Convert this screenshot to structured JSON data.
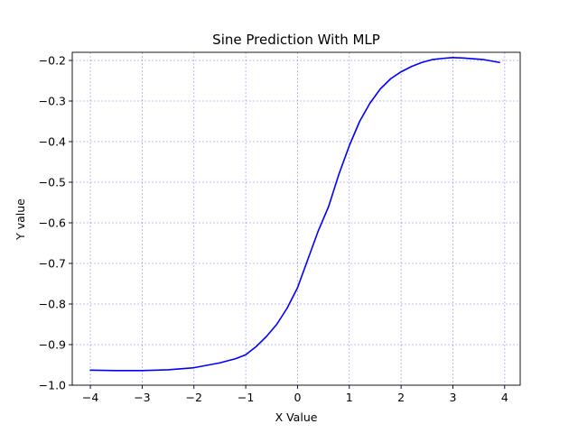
{
  "chart_data": {
    "type": "line",
    "title": "Sine Prediction With MLP",
    "xlabel": "X Value",
    "ylabel": "Y value",
    "xlim": [
      -4.35,
      4.3
    ],
    "ylim": [
      -1.0,
      -0.18
    ],
    "xticks": [
      -4,
      -3,
      -2,
      -1,
      0,
      1,
      2,
      3,
      4
    ],
    "xtick_labels": [
      "−4",
      "−3",
      "−2",
      "−1",
      "0",
      "1",
      "2",
      "3",
      "4"
    ],
    "yticks": [
      -1.0,
      -0.9,
      -0.8,
      -0.7,
      -0.6,
      -0.5,
      -0.4,
      -0.3,
      -0.2
    ],
    "ytick_labels": [
      "−1.0",
      "−0.9",
      "−0.8",
      "−0.7",
      "−0.6",
      "−0.5",
      "−0.4",
      "−0.3",
      "−0.2"
    ],
    "grid": true,
    "grid_color": "#0000ff",
    "series": [
      {
        "color": "#0000ff",
        "x": [
          -4.0,
          -3.5,
          -3.0,
          -2.5,
          -2.0,
          -1.5,
          -1.2,
          -1.0,
          -0.8,
          -0.6,
          -0.4,
          -0.2,
          0.0,
          0.2,
          0.4,
          0.6,
          0.8,
          1.0,
          1.2,
          1.4,
          1.6,
          1.8,
          2.0,
          2.2,
          2.4,
          2.6,
          2.8,
          3.0,
          3.2,
          3.4,
          3.6,
          3.9
        ],
        "y": [
          -0.963,
          -0.964,
          -0.964,
          -0.962,
          -0.957,
          -0.945,
          -0.935,
          -0.925,
          -0.905,
          -0.88,
          -0.85,
          -0.81,
          -0.76,
          -0.69,
          -0.62,
          -0.56,
          -0.48,
          -0.41,
          -0.35,
          -0.305,
          -0.27,
          -0.245,
          -0.228,
          -0.215,
          -0.205,
          -0.198,
          -0.195,
          -0.193,
          -0.194,
          -0.196,
          -0.198,
          -0.205
        ]
      }
    ]
  }
}
